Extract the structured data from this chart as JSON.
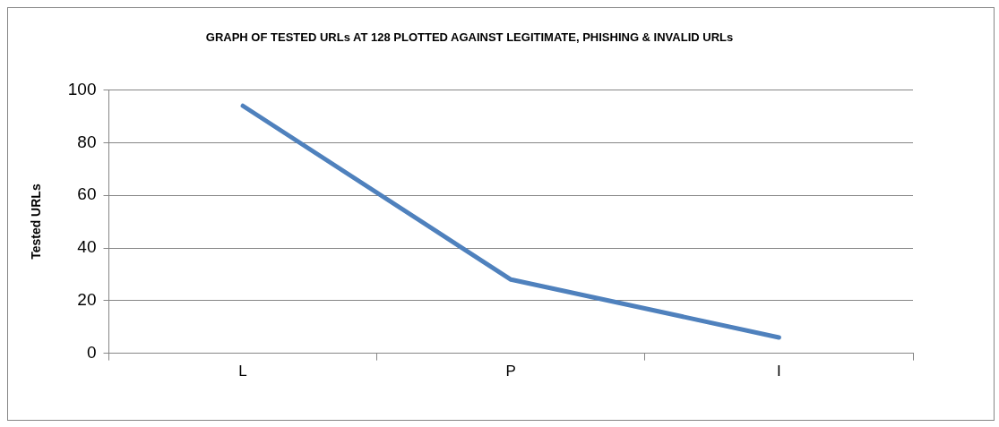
{
  "chart_data": {
    "type": "line",
    "title": "GRAPH OF TESTED URLs AT 128 PLOTTED AGAINST LEGITIMATE, PHISHING & INVALID URLs",
    "ylabel": "Tested URLs",
    "categories": [
      "L",
      "P",
      "I"
    ],
    "series": [
      {
        "color": "#4f81bd",
        "values": [
          94,
          28,
          6
        ]
      }
    ],
    "ylim": [
      0,
      100
    ],
    "yticks": [
      0,
      20,
      40,
      60,
      80,
      100
    ],
    "grid": "y",
    "legend": false,
    "marker": "none",
    "line_style": "solid"
  }
}
